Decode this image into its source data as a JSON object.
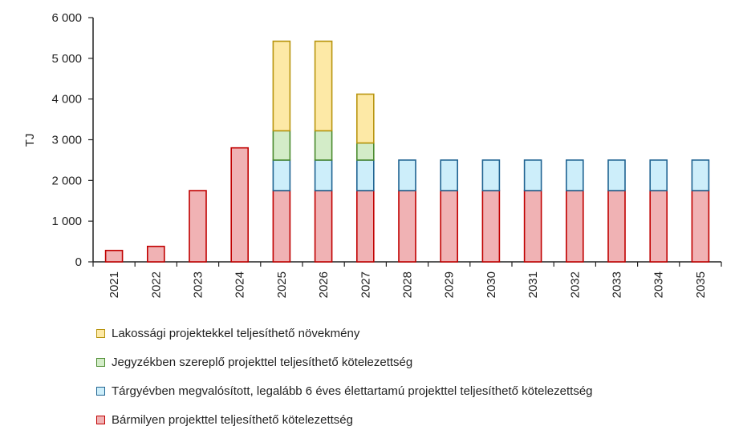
{
  "chart_data": {
    "type": "bar",
    "stacked": true,
    "ylabel": "TJ",
    "ylim": [
      0,
      6000
    ],
    "yticks": [
      0,
      1000,
      2000,
      3000,
      4000,
      5000,
      6000
    ],
    "ytick_labels": [
      "0",
      "1 000",
      "2 000",
      "3 000",
      "4 000",
      "5 000",
      "6 000"
    ],
    "categories": [
      "2021",
      "2022",
      "2023",
      "2024",
      "2025",
      "2026",
      "2027",
      "2028",
      "2029",
      "2030",
      "2031",
      "2032",
      "2033",
      "2034",
      "2035"
    ],
    "series": [
      {
        "name": "Bármilyen projekttel teljesíthető kötelezettség",
        "fill": "#f0b2b4",
        "stroke": "#c00000",
        "values": [
          280,
          380,
          1750,
          2800,
          1750,
          1750,
          1750,
          1750,
          1750,
          1750,
          1750,
          1750,
          1750,
          1750,
          1750
        ]
      },
      {
        "name": "Tárgyévben megvalósított, legalább 6 éves élettartamú projekttel teljesíthető kötelezettség",
        "fill": "#cdeefa",
        "stroke": "#1f6391",
        "values": [
          0,
          0,
          0,
          0,
          750,
          750,
          750,
          750,
          750,
          750,
          750,
          750,
          750,
          750,
          750
        ]
      },
      {
        "name": "Jegyzékben szereplő projekttel teljesíthető kötelezettség",
        "fill": "#d3ecc8",
        "stroke": "#4a8a2e",
        "values": [
          0,
          0,
          0,
          0,
          720,
          720,
          420,
          0,
          0,
          0,
          0,
          0,
          0,
          0,
          0
        ]
      },
      {
        "name": "Lakossági projektekkel teljesíthető növekmény",
        "fill": "#fde9a6",
        "stroke": "#b8950f",
        "values": [
          0,
          0,
          0,
          0,
          2200,
          2200,
          1200,
          0,
          0,
          0,
          0,
          0,
          0,
          0,
          0
        ]
      }
    ],
    "legend_order": [
      3,
      2,
      1,
      0
    ],
    "legend_position": "bottom-left",
    "grid": false
  }
}
